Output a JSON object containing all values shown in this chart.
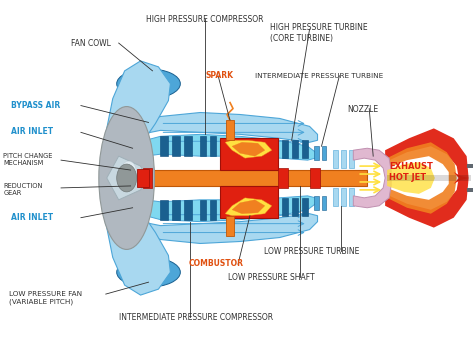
{
  "bg_color": "#ffffff",
  "c_blue_light": "#a8d8f0",
  "c_blue_mid": "#4da6d8",
  "c_blue_dark": "#1a6090",
  "c_cyan": "#7fd8f0",
  "c_orange": "#f08020",
  "c_red": "#e02010",
  "c_yellow": "#ffe040",
  "c_pink": "#e0b8d0",
  "c_gray": "#b0b8c0",
  "c_darkgray": "#606870",
  "labels": {
    "fan_cowl": {
      "text": "FAN COWL",
      "color": "#303030",
      "fs": 5.5
    },
    "bypass_air": {
      "text": "BYPASS AIR",
      "color": "#2090cc",
      "fs": 5.5
    },
    "air_inlet_top": {
      "text": "AIR INLET",
      "color": "#2090cc",
      "fs": 5.5
    },
    "pitch_change": {
      "text": "PITCH CHANGE\nMECHANISM",
      "color": "#303030",
      "fs": 4.8
    },
    "reduction_gear": {
      "text": "REDUCTION\nGEAR",
      "color": "#303030",
      "fs": 4.8
    },
    "air_inlet_bot": {
      "text": "AIR INLET",
      "color": "#2090cc",
      "fs": 5.5
    },
    "low_pres_fan": {
      "text": "LOW PRESSURE FAN\n(VARIABLE PITCH)",
      "color": "#303030",
      "fs": 5.2
    },
    "hp_compressor": {
      "text": "HIGH PRESSURE COMPRESSOR",
      "color": "#303030",
      "fs": 5.5
    },
    "spark": {
      "text": "SPARK",
      "color": "#e05010",
      "fs": 5.5
    },
    "hp_turbine": {
      "text": "HIGH PRESSURE TURBINE\n(CORE TURBINE)",
      "color": "#303030",
      "fs": 5.5
    },
    "int_pres_turbine": {
      "text": "INTERMEDIATE PRESSURE TURBINE",
      "color": "#303030",
      "fs": 5.2
    },
    "nozzle": {
      "text": "NOZZLE",
      "color": "#303030",
      "fs": 5.5
    },
    "exhaust": {
      "text": "EXHAUST\nHOT JET",
      "color": "#e02010",
      "fs": 6.0
    },
    "combustor": {
      "text": "COMBUSTOR",
      "color": "#e05010",
      "fs": 5.5
    },
    "low_pres_turbine": {
      "text": "LOW PRESSURE TURBINE",
      "color": "#303030",
      "fs": 5.5
    },
    "low_pres_shaft": {
      "text": "LOW PRESSURE SHAFT",
      "color": "#303030",
      "fs": 5.5
    },
    "int_pres_comp": {
      "text": "INTERMEDIATE PRESSURE COMPRESSOR",
      "color": "#303030",
      "fs": 5.5
    }
  }
}
